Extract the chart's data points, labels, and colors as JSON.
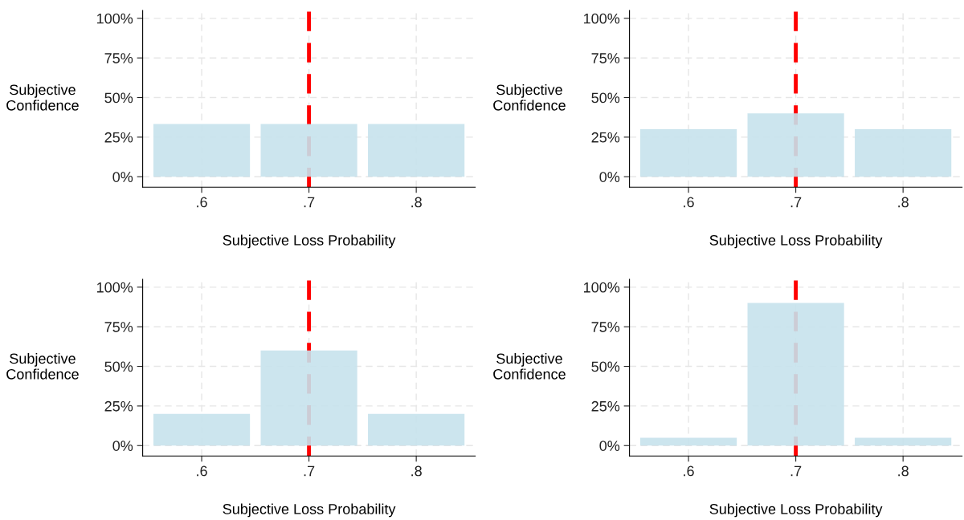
{
  "chart_data": [
    {
      "type": "bar",
      "x": [
        0.6,
        0.7,
        0.8
      ],
      "values": [
        33.3,
        33.3,
        33.3
      ],
      "color": "#c6e2ec",
      "xlabel": "Subjective Loss Probability",
      "ylabel": "Subjective\nConfidence",
      "xlim": [
        0.545,
        0.855
      ],
      "ylim": [
        -6.6,
        105
      ],
      "xticks": [
        {
          "value": 0.6,
          "label": ".6"
        },
        {
          "value": 0.7,
          "label": ".7"
        },
        {
          "value": 0.8,
          "label": ".8"
        }
      ],
      "yticks": [
        {
          "value": 0,
          "label": "0%"
        },
        {
          "value": 25,
          "label": "25%"
        },
        {
          "value": 50,
          "label": "50%"
        },
        {
          "value": 75,
          "label": "75%"
        },
        {
          "value": 100,
          "label": "100%"
        }
      ],
      "grid": true,
      "ref_lines": [
        {
          "axis": "x",
          "value": 0.7,
          "color": "#ff0000",
          "line_style": "dashed"
        }
      ]
    },
    {
      "type": "bar",
      "x": [
        0.6,
        0.7,
        0.8
      ],
      "values": [
        30,
        40,
        30
      ],
      "color": "#c6e2ec",
      "xlabel": "Subjective Loss Probability",
      "ylabel": "Subjective\nConfidence",
      "xlim": [
        0.545,
        0.855
      ],
      "ylim": [
        -6.6,
        105
      ],
      "xticks": [
        {
          "value": 0.6,
          "label": ".6"
        },
        {
          "value": 0.7,
          "label": ".7"
        },
        {
          "value": 0.8,
          "label": ".8"
        }
      ],
      "yticks": [
        {
          "value": 0,
          "label": "0%"
        },
        {
          "value": 25,
          "label": "25%"
        },
        {
          "value": 50,
          "label": "50%"
        },
        {
          "value": 75,
          "label": "75%"
        },
        {
          "value": 100,
          "label": "100%"
        }
      ],
      "grid": true,
      "ref_lines": [
        {
          "axis": "x",
          "value": 0.7,
          "color": "#ff0000",
          "line_style": "dashed"
        }
      ]
    },
    {
      "type": "bar",
      "x": [
        0.6,
        0.7,
        0.8
      ],
      "values": [
        20,
        60,
        20
      ],
      "color": "#c6e2ec",
      "xlabel": "Subjective Loss Probability",
      "ylabel": "Subjective\nConfidence",
      "xlim": [
        0.545,
        0.855
      ],
      "ylim": [
        -6.6,
        105
      ],
      "xticks": [
        {
          "value": 0.6,
          "label": ".6"
        },
        {
          "value": 0.7,
          "label": ".7"
        },
        {
          "value": 0.8,
          "label": ".8"
        }
      ],
      "yticks": [
        {
          "value": 0,
          "label": "0%"
        },
        {
          "value": 25,
          "label": "25%"
        },
        {
          "value": 50,
          "label": "50%"
        },
        {
          "value": 75,
          "label": "75%"
        },
        {
          "value": 100,
          "label": "100%"
        }
      ],
      "grid": true,
      "ref_lines": [
        {
          "axis": "x",
          "value": 0.7,
          "color": "#ff0000",
          "line_style": "dashed"
        }
      ]
    },
    {
      "type": "bar",
      "x": [
        0.6,
        0.7,
        0.8
      ],
      "values": [
        5,
        90,
        5
      ],
      "color": "#c6e2ec",
      "xlabel": "Subjective Loss Probability",
      "ylabel": "Subjective\nConfidence",
      "xlim": [
        0.545,
        0.855
      ],
      "ylim": [
        -6.6,
        105
      ],
      "xticks": [
        {
          "value": 0.6,
          "label": ".6"
        },
        {
          "value": 0.7,
          "label": ".7"
        },
        {
          "value": 0.8,
          "label": ".8"
        }
      ],
      "yticks": [
        {
          "value": 0,
          "label": "0%"
        },
        {
          "value": 25,
          "label": "25%"
        },
        {
          "value": 50,
          "label": "50%"
        },
        {
          "value": 75,
          "label": "75%"
        },
        {
          "value": 100,
          "label": "100%"
        }
      ],
      "grid": true,
      "ref_lines": [
        {
          "axis": "x",
          "value": 0.7,
          "color": "#ff0000",
          "line_style": "dashed"
        }
      ]
    }
  ]
}
